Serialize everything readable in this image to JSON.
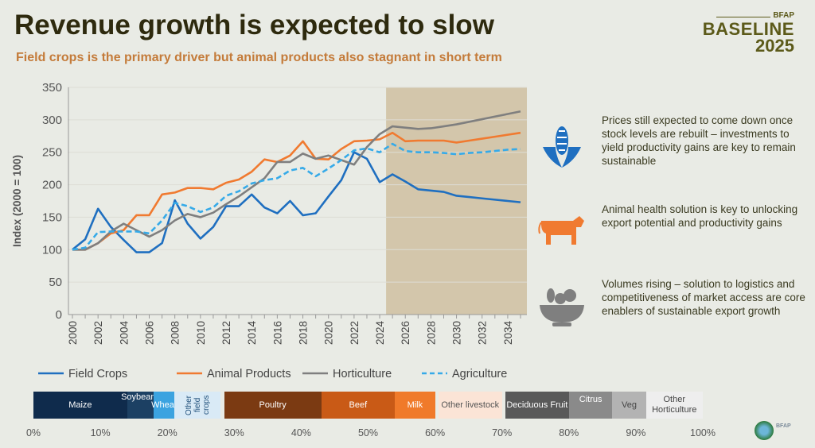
{
  "title": "Revenue growth is expected to slow",
  "subtitle": "Field crops is the primary driver but animal products also stagnant in short term",
  "logo": {
    "top": "BFAP",
    "main": "BASELINE",
    "year": "2025"
  },
  "chart_data": {
    "type": "line",
    "ylabel": "Index (2000 = 100)",
    "ylim": [
      0,
      350
    ],
    "yticks": [
      0,
      50,
      100,
      150,
      200,
      250,
      300,
      350
    ],
    "x": [
      2000,
      2001,
      2002,
      2003,
      2004,
      2005,
      2006,
      2007,
      2008,
      2009,
      2010,
      2011,
      2012,
      2013,
      2014,
      2015,
      2016,
      2017,
      2018,
      2019,
      2020,
      2021,
      2022,
      2023,
      2024,
      2025,
      2026,
      2027,
      2028,
      2029,
      2030,
      2031,
      2032,
      2033,
      2034,
      2035
    ],
    "xticks": [
      "2000",
      "2002",
      "2004",
      "2006",
      "2008",
      "2010",
      "2012",
      "2014",
      "2016",
      "2018",
      "2020",
      "2022",
      "2024",
      "2026",
      "2028",
      "2030",
      "2032",
      "2034"
    ],
    "projection_start": 2024.5,
    "legend_position": "bottom",
    "series": [
      {
        "name": "Field Crops",
        "color": "#1f6fc0",
        "dashed": false,
        "values": [
          100,
          116,
          163,
          135,
          115,
          96,
          96,
          110,
          176,
          140,
          117,
          135,
          167,
          167,
          185,
          165,
          156,
          175,
          153,
          156,
          182,
          207,
          250,
          240,
          204,
          216,
          205,
          193,
          191,
          189,
          183,
          181,
          179,
          177,
          175,
          173
        ]
      },
      {
        "name": "Animal Products",
        "color": "#f07a30",
        "dashed": false,
        "values": [
          100,
          100,
          110,
          125,
          130,
          153,
          153,
          185,
          188,
          195,
          195,
          193,
          203,
          208,
          220,
          239,
          235,
          245,
          267,
          240,
          239,
          255,
          267,
          268,
          270,
          280,
          267,
          268,
          268,
          268,
          265,
          268,
          271,
          274,
          277,
          280
        ]
      },
      {
        "name": "Horticulture",
        "color": "#7f7f7f",
        "dashed": false,
        "values": [
          100,
          100,
          110,
          128,
          140,
          130,
          120,
          130,
          145,
          155,
          150,
          157,
          170,
          182,
          196,
          210,
          235,
          235,
          248,
          240,
          245,
          238,
          231,
          258,
          278,
          290,
          288,
          286,
          287,
          290,
          293,
          297,
          301,
          305,
          309,
          313
        ]
      },
      {
        "name": "Agriculture",
        "color": "#36aae8",
        "dashed": true,
        "values": [
          100,
          103,
          127,
          128,
          128,
          128,
          125,
          145,
          172,
          167,
          158,
          165,
          183,
          190,
          202,
          207,
          210,
          222,
          226,
          213,
          225,
          238,
          253,
          256,
          250,
          263,
          252,
          250,
          250,
          249,
          247,
          249,
          250,
          252,
          254,
          255
        ]
      }
    ]
  },
  "notes": [
    {
      "icon": "corn-icon",
      "color": "#1f6fc0",
      "text": "Prices still expected to come down once stock levels are rebuilt – investments to yield productivity gains are key to remain sustainable"
    },
    {
      "icon": "cow-icon",
      "color": "#f07a30",
      "text": "Animal health solution is key to unlocking export potential and productivity gains"
    },
    {
      "icon": "fruit-bowl-icon",
      "color": "#7f7f7f",
      "text": "Volumes rising – solution to logistics and competitiveness of market access are core enablers of sustainable export growth"
    }
  ],
  "composition": {
    "segments": [
      {
        "label": "Maize",
        "start": 0,
        "end": 14,
        "color": "#0f2b4c",
        "text_color": "#ffffff"
      },
      {
        "label": "Soybeans",
        "start": 14,
        "end": 18,
        "color": "#1c4063",
        "text_color": "#ffffff"
      },
      {
        "label": "Wheat",
        "start": 18,
        "end": 21,
        "color": "#3ba3e0",
        "text_color": "#ffffff"
      },
      {
        "label": "Other field crops",
        "start": 21,
        "end": 28,
        "color": "#d9eaf6",
        "text_color": "#1f4f7a"
      },
      {
        "label": "Poultry",
        "start": 28.5,
        "end": 43,
        "color": "#7b3a12",
        "text_color": "#ffffff"
      },
      {
        "label": "Beef",
        "start": 43,
        "end": 54,
        "color": "#c95a16",
        "text_color": "#ffffff"
      },
      {
        "label": "Milk",
        "start": 54,
        "end": 60,
        "color": "#f07a2a",
        "text_color": "#ffffff"
      },
      {
        "label": "Other livestock",
        "start": 60.5,
        "end": 70,
        "color": "#fbe4d6",
        "text_color": "#555555"
      },
      {
        "label": "Deciduous Fruit",
        "start": 70.5,
        "end": 80,
        "color": "#595959",
        "text_color": "#ffffff"
      },
      {
        "label": "Citrus",
        "start": 80,
        "end": 86.5,
        "color": "#8a8a8a",
        "text_color": "#ffffff"
      },
      {
        "label": "Veg",
        "start": 86.5,
        "end": 91.5,
        "color": "#b3b3b3",
        "text_color": "#444444"
      },
      {
        "label": "Other Horticulture",
        "start": 91.5,
        "end": 100,
        "color": "#eeeeee",
        "text_color": "#444444"
      }
    ],
    "ticks": [
      "0%",
      "10%",
      "20%",
      "30%",
      "40%",
      "50%",
      "60%",
      "70%",
      "80%",
      "90%",
      "100%"
    ]
  },
  "footer_logo": "BFAP"
}
